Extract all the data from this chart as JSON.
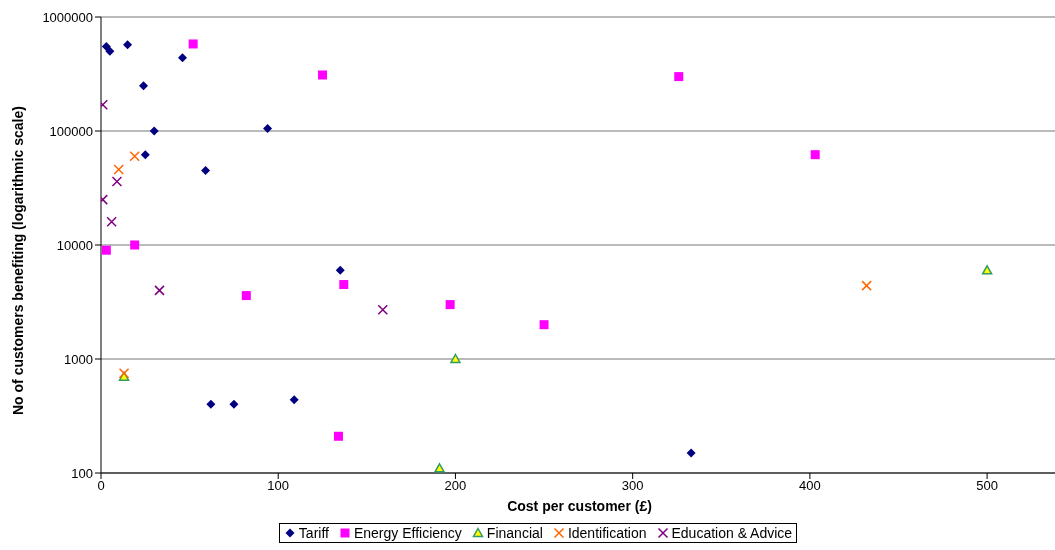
{
  "chart_data": {
    "type": "scatter",
    "xlabel": "Cost per customer (£)",
    "ylabel": "No of customers benefiting (logarithmic scale)",
    "log": "y",
    "grid": "y",
    "legend": "bottom",
    "xlim": [
      0,
      540
    ],
    "xticks": [
      0,
      100,
      200,
      300,
      400,
      500
    ],
    "ylim": [
      100,
      1000000
    ],
    "yticks": [
      100,
      1000,
      10000,
      100000,
      1000000
    ],
    "series": [
      {
        "name": "Tariff",
        "color": "#000080",
        "marker": "diamond",
        "x": [
          3,
          5,
          15,
          24,
          46,
          30,
          25,
          94,
          59,
          135,
          62,
          75,
          109,
          333
        ],
        "values": [
          550000,
          500000,
          570000,
          250000,
          440000,
          100000,
          62000,
          105000,
          45000,
          6000,
          400,
          400,
          440,
          150
        ]
      },
      {
        "name": "Energy Efficiency",
        "color": "#ff00ff",
        "marker": "square",
        "x": [
          52,
          125,
          326,
          403,
          3,
          19,
          82,
          137,
          197,
          250,
          134
        ],
        "values": [
          580000,
          310000,
          300000,
          62000,
          9000,
          10000,
          3600,
          4500,
          3000,
          2000,
          210
        ]
      },
      {
        "name": "Financial",
        "color": "#339966",
        "marker": "triangle",
        "x": [
          13,
          200,
          191,
          500
        ],
        "values": [
          700,
          1000,
          110,
          6000
        ]
      },
      {
        "name": "Identification",
        "color": "#ff6600",
        "marker": "cross",
        "x": [
          13,
          10,
          19,
          432
        ],
        "values": [
          750,
          46000,
          60000,
          4400
        ]
      },
      {
        "name": "Education & Advice",
        "color": "#800080",
        "marker": "cross",
        "x": [
          1,
          1,
          6,
          9,
          33,
          159
        ],
        "values": [
          170000,
          25000,
          16000,
          36000,
          4000,
          2700
        ]
      }
    ]
  }
}
